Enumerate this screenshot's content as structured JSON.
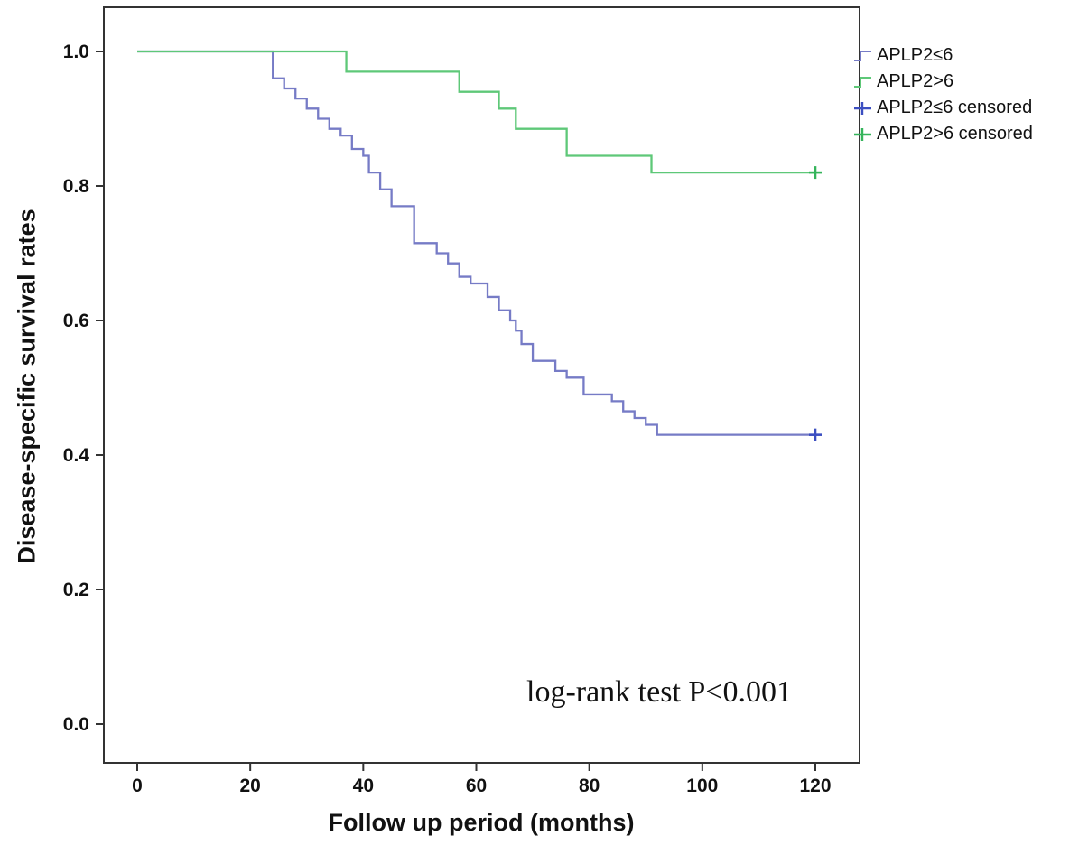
{
  "chart_data": {
    "type": "line",
    "subtype": "kaplan-meier-step-survival",
    "title": "",
    "xlabel": "Follow up period (months)",
    "ylabel": "Disease-specific survival rates",
    "xlim": [
      -6,
      128
    ],
    "ylim": [
      -0.06,
      1.07
    ],
    "xticks": [
      0,
      20,
      40,
      60,
      80,
      100,
      120
    ],
    "yticks": [
      0.0,
      0.2,
      0.4,
      0.6,
      0.8,
      1.0
    ],
    "ytick_labels": [
      "0.0",
      "0.2",
      "0.4",
      "0.6",
      "0.8",
      "1.0"
    ],
    "grid": false,
    "legend_position": "outside-top-right",
    "annotation": "log-rank test P<0.001",
    "series": [
      {
        "name": "APLP2≤6",
        "color": "#767bc6",
        "censor_color": "#3c4fc1",
        "points": [
          [
            0,
            1.0
          ],
          [
            24,
            0.96
          ],
          [
            26,
            0.945
          ],
          [
            28,
            0.93
          ],
          [
            30,
            0.915
          ],
          [
            32,
            0.9
          ],
          [
            34,
            0.885
          ],
          [
            36,
            0.875
          ],
          [
            38,
            0.855
          ],
          [
            40,
            0.845
          ],
          [
            41,
            0.82
          ],
          [
            43,
            0.795
          ],
          [
            45,
            0.77
          ],
          [
            49,
            0.715
          ],
          [
            53,
            0.7
          ],
          [
            55,
            0.685
          ],
          [
            57,
            0.665
          ],
          [
            59,
            0.655
          ],
          [
            62,
            0.635
          ],
          [
            64,
            0.615
          ],
          [
            66,
            0.6
          ],
          [
            67,
            0.585
          ],
          [
            68,
            0.565
          ],
          [
            70,
            0.54
          ],
          [
            74,
            0.525
          ],
          [
            76,
            0.515
          ],
          [
            79,
            0.49
          ],
          [
            84,
            0.48
          ],
          [
            86,
            0.465
          ],
          [
            88,
            0.455
          ],
          [
            90,
            0.445
          ],
          [
            92,
            0.43
          ],
          [
            120,
            0.43
          ]
        ],
        "censored": [
          [
            120,
            0.43
          ]
        ]
      },
      {
        "name": "APLP2>6",
        "color": "#5ec878",
        "censor_color": "#35b45b",
        "points": [
          [
            0,
            1.0
          ],
          [
            37,
            0.97
          ],
          [
            57,
            0.94
          ],
          [
            64,
            0.915
          ],
          [
            67,
            0.885
          ],
          [
            76,
            0.845
          ],
          [
            91,
            0.82
          ],
          [
            120,
            0.82
          ]
        ],
        "censored": [
          [
            120,
            0.82
          ]
        ]
      }
    ],
    "legend": [
      {
        "label": "APLP2≤6",
        "color": "#767bc6",
        "type": "step"
      },
      {
        "label": "APLP2>6",
        "color": "#5ec878",
        "type": "step"
      },
      {
        "label": "APLP2≤6 censored",
        "color": "#3c4fc1",
        "type": "censored"
      },
      {
        "label": "APLP2>6 censored",
        "color": "#35b45b",
        "type": "censored"
      }
    ]
  }
}
